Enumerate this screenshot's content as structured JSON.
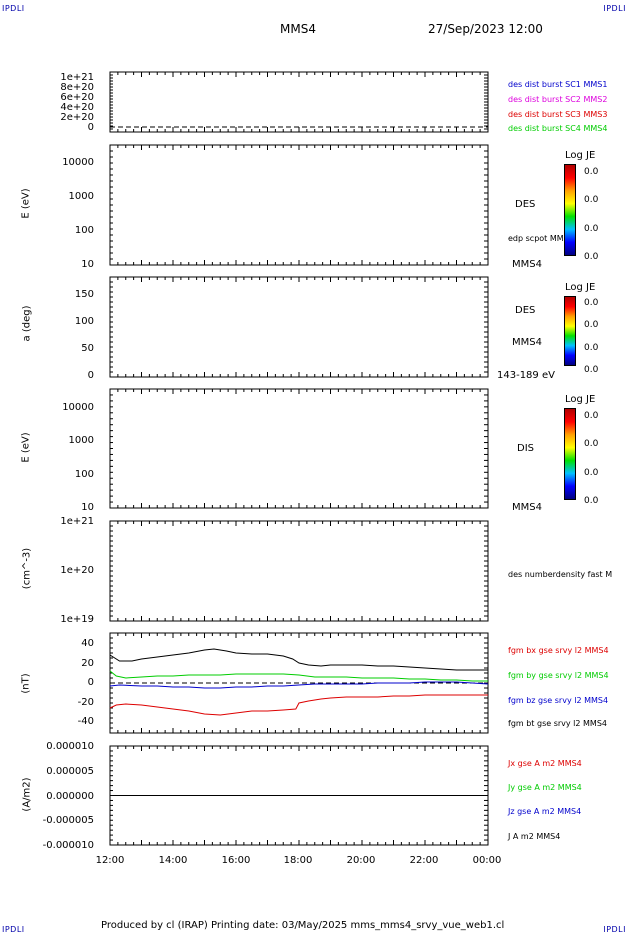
{
  "header": {
    "corner_left": "IPDLI",
    "corner_right": "IPDLI",
    "corner_bottom_left": "IPDLI",
    "corner_bottom_right": "IPDLI",
    "spacecraft": "MMS4",
    "datetime": "27/Sep/2023 12:00"
  },
  "footer": {
    "text": "Produced by cl (IRAP)   Printing date: 03/May/2025   mms_mms4_srvy_vue_web1.cl"
  },
  "colors": {
    "black": "#000000",
    "red": "#dd0000",
    "green": "#00cc00",
    "blue": "#0000cc",
    "magenta": "#dd00dd"
  },
  "panels": {
    "p1": {
      "ticks": [
        "1e+21",
        "8e+20",
        "6e+20",
        "4e+20",
        "2e+20",
        "0"
      ],
      "legend": [
        {
          "text": "des dist burst SC1 MMS1",
          "color": "#0000cc"
        },
        {
          "text": "des dist burst SC2 MMS2",
          "color": "#dd00dd"
        },
        {
          "text": "des dist burst SC3 MMS3",
          "color": "#dd0000"
        },
        {
          "text": "des dist burst SC4 MMS4",
          "color": "#00cc00"
        }
      ]
    },
    "p2": {
      "ylabel": "E (eV)",
      "ticks": [
        "10000",
        "1000",
        "100",
        "10"
      ],
      "side_label": "DES",
      "side_sub": "edp scpot MMS4",
      "side_bottom": "MMS4",
      "cb_title": "Log JE",
      "cb_values": [
        "0.0",
        "0.0",
        "0.0",
        "0.0"
      ]
    },
    "p3": {
      "ylabel": "a (deg)",
      "ticks": [
        "150",
        "100",
        "50",
        "0"
      ],
      "side_label": "DES",
      "side_sub": "MMS4",
      "side_bottom": "143-189 eV",
      "cb_title": "Log JE",
      "cb_values": [
        "0.0",
        "0.0",
        "0.0",
        "0.0"
      ]
    },
    "p4": {
      "ylabel": "E (eV)",
      "ticks": [
        "10000",
        "1000",
        "100",
        "10"
      ],
      "side_label": "DIS",
      "side_bottom": "MMS4",
      "cb_title": "Log JE",
      "cb_values": [
        "0.0",
        "0.0",
        "0.0",
        "0.0"
      ]
    },
    "p5": {
      "ylabel": "(cm^-3)",
      "ticks": [
        "1e+21",
        "1e+20",
        "1e+19"
      ],
      "side_label": "des numberdensity fast M"
    },
    "p6": {
      "ylabel": "(nT)",
      "ticks": [
        "40",
        "20",
        "0",
        "-20",
        "-40"
      ],
      "legend": [
        {
          "text": "fgm bx gse srvy l2 MMS4",
          "color": "#dd0000"
        },
        {
          "text": "fgm by gse srvy l2 MMS4",
          "color": "#00cc00"
        },
        {
          "text": "fgm bz gse srvy l2 MMS4",
          "color": "#0000cc"
        },
        {
          "text": "fgm bt gse srvy l2 MMS4",
          "color": "#000000"
        }
      ]
    },
    "p7": {
      "ylabel": "(A/m2)",
      "ticks": [
        "0.000010",
        "0.000005",
        "0.000000",
        "-0.000005",
        "-0.000010"
      ],
      "legend": [
        {
          "text": "Jx gse A m2 MMS4",
          "color": "#dd0000"
        },
        {
          "text": "Jy gse A m2 MMS4",
          "color": "#00cc00"
        },
        {
          "text": "Jz gse A m2 MMS4",
          "color": "#0000cc"
        },
        {
          "text": "J A m2 MMS4",
          "color": "#000000"
        }
      ]
    }
  },
  "chart_data": {
    "type": "line",
    "x_ticks": [
      "12:00",
      "14:00",
      "16:00",
      "18:00",
      "20:00",
      "22:00",
      "00:00"
    ],
    "xlim_hours": [
      12,
      24
    ],
    "magnetic_field": {
      "ylim": [
        -50,
        50
      ],
      "series": [
        {
          "name": "fgm bt gse srvy l2 MMS4",
          "color": "#000000",
          "x": [
            12.0,
            12.3,
            12.7,
            13.0,
            13.5,
            14.0,
            14.5,
            15.0,
            15.3,
            15.7,
            16.0,
            16.5,
            17.0,
            17.5,
            17.8,
            18.0,
            18.3,
            18.7,
            19.0,
            19.5,
            20.0,
            20.5,
            21.0,
            21.5,
            22.0,
            22.5,
            23.0,
            23.5,
            24.0
          ],
          "y": [
            28,
            22,
            22,
            24,
            26,
            28,
            30,
            33,
            34,
            32,
            30,
            29,
            29,
            27,
            24,
            20,
            18,
            17,
            18,
            18,
            18,
            17,
            17,
            16,
            15,
            14,
            13,
            13,
            13
          ]
        },
        {
          "name": "fgm by gse srvy l2 MMS4",
          "color": "#00cc00",
          "x": [
            12.0,
            12.2,
            12.5,
            13.0,
            13.5,
            14.0,
            14.5,
            15.0,
            15.5,
            16.0,
            16.5,
            17.0,
            17.5,
            18.0,
            18.5,
            19.0,
            19.5,
            20.0,
            20.5,
            21.0,
            21.5,
            22.0,
            22.5,
            23.0,
            23.5,
            24.0
          ],
          "y": [
            12,
            7,
            5,
            6,
            7,
            7,
            8,
            8,
            8,
            9,
            9,
            9,
            9,
            8,
            6,
            6,
            6,
            5,
            5,
            5,
            4,
            4,
            3,
            3,
            2,
            2
          ]
        },
        {
          "name": "fgm bz gse srvy l2 MMS4",
          "color": "#0000cc",
          "x": [
            12.0,
            12.3,
            13.0,
            13.5,
            14.0,
            14.5,
            15.0,
            15.5,
            16.0,
            16.5,
            17.0,
            17.5,
            18.0,
            18.5,
            19.0,
            19.5,
            20.0,
            20.5,
            21.0,
            21.5,
            22.0,
            22.5,
            23.0,
            23.5,
            24.0
          ],
          "y": [
            -3,
            -2,
            -3,
            -3,
            -4,
            -4,
            -5,
            -5,
            -4,
            -4,
            -3,
            -3,
            -2,
            -1,
            -1,
            -1,
            -1,
            0,
            0,
            0,
            1,
            1,
            1,
            0,
            -1
          ]
        },
        {
          "name": "fgm bx gse srvy l2 MMS4",
          "color": "#dd0000",
          "x": [
            12.0,
            12.2,
            12.5,
            13.0,
            13.5,
            14.0,
            14.5,
            15.0,
            15.5,
            16.0,
            16.5,
            17.0,
            17.5,
            17.9,
            18.0,
            18.3,
            18.7,
            19.0,
            19.5,
            20.0,
            20.5,
            21.0,
            21.5,
            22.0,
            22.5,
            23.0,
            23.5,
            24.0
          ],
          "y": [
            -25,
            -22,
            -21,
            -22,
            -24,
            -26,
            -28,
            -31,
            -32,
            -30,
            -28,
            -28,
            -27,
            -26,
            -20,
            -18,
            -16,
            -15,
            -14,
            -14,
            -14,
            -13,
            -13,
            -12,
            -12,
            -12,
            -12,
            -12
          ]
        }
      ]
    },
    "current_density": {
      "ylim": [
        -1e-05,
        1e-05
      ],
      "series": [
        {
          "name": "J A m2 MMS4",
          "color": "#000000",
          "x": [
            12,
            24
          ],
          "y": [
            0,
            0
          ]
        }
      ]
    }
  }
}
